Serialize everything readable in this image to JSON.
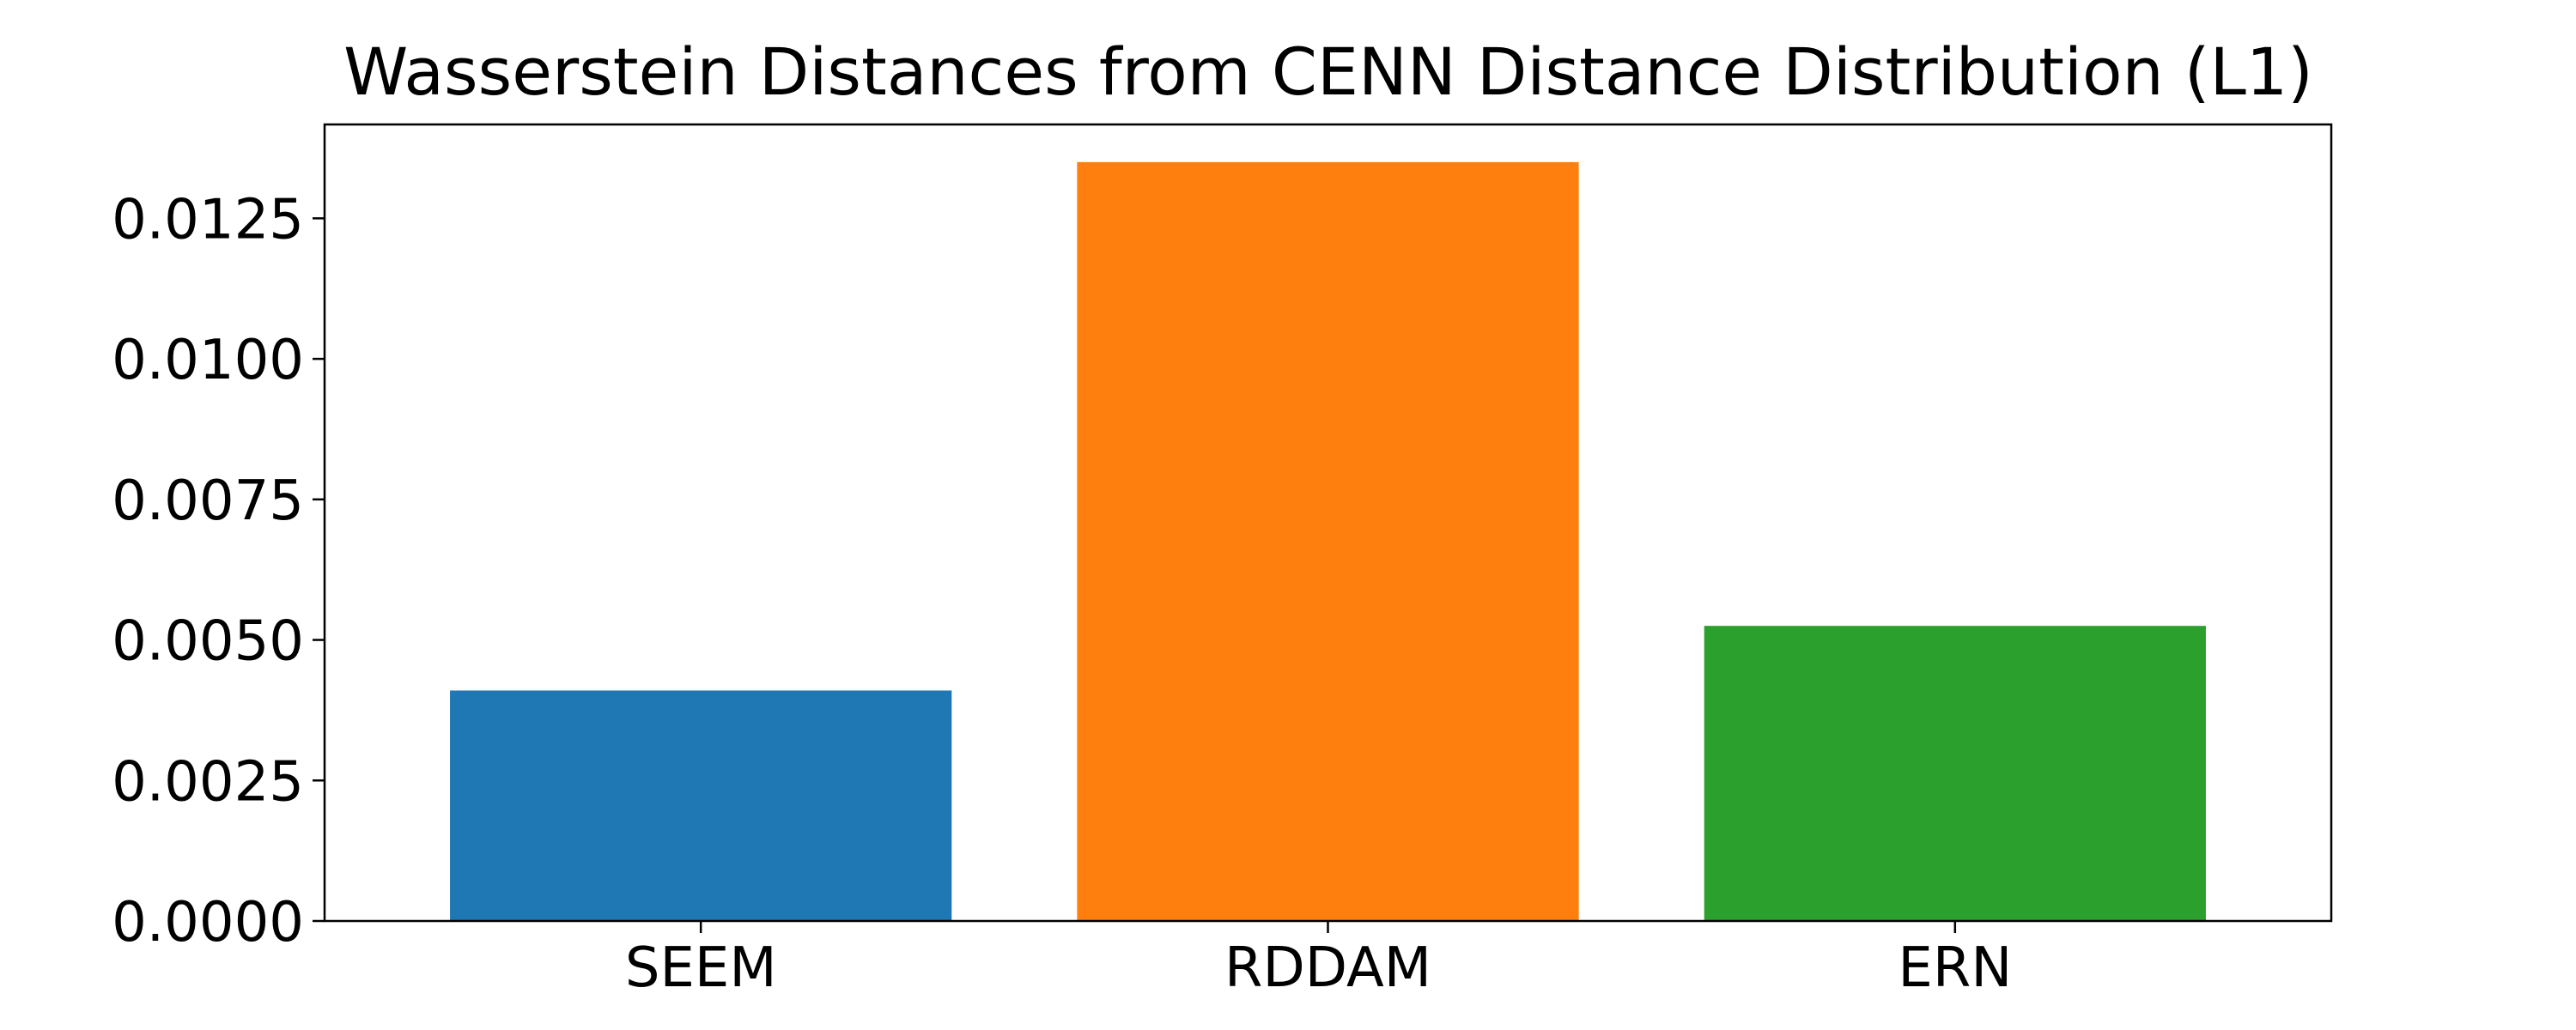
{
  "chart_data": {
    "type": "bar",
    "title": "Wasserstein Distances from CENN Distance Distribution (L1)",
    "xlabel": "",
    "ylabel": "",
    "categories": [
      "SEEM",
      "RDDAM",
      "ERN"
    ],
    "values": [
      0.0041,
      0.0135,
      0.00525
    ],
    "colors": [
      "#1f77b4",
      "#ff7f0e",
      "#2ca02c"
    ],
    "ylim": [
      0,
      0.01417
    ],
    "yticks": [
      0.0,
      0.0025,
      0.005,
      0.0075,
      0.01,
      0.0125
    ],
    "ytick_labels": [
      "0.0000",
      "0.0025",
      "0.0050",
      "0.0075",
      "0.0100",
      "0.0125"
    ],
    "grid": false,
    "legend": "none"
  }
}
